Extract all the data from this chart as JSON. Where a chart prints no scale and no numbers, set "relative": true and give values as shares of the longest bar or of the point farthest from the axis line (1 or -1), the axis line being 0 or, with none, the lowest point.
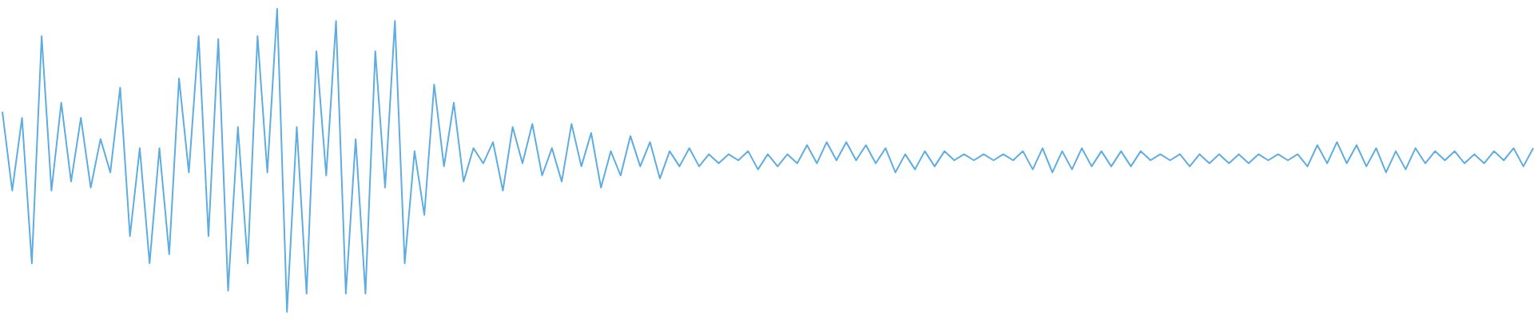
{
  "chart_data": {
    "type": "line",
    "relative": true,
    "categories": [
      null,
      null,
      null,
      null,
      null,
      null,
      null,
      null,
      null,
      null,
      null,
      null,
      null,
      null,
      null,
      null,
      null,
      null,
      null,
      null,
      null,
      null,
      null,
      null,
      null,
      null,
      null,
      null,
      null,
      null,
      null,
      null,
      null,
      null,
      null,
      null,
      null,
      null,
      null,
      null,
      null,
      null,
      null,
      null,
      null,
      null,
      null,
      null,
      null,
      null,
      null,
      null,
      null,
      null,
      null,
      null,
      null,
      null,
      null,
      null,
      null,
      null,
      null,
      null,
      null,
      null,
      null,
      null,
      null,
      null,
      null,
      null,
      null,
      null,
      null,
      null,
      null,
      null,
      null,
      null,
      null,
      null,
      null,
      null,
      null,
      null,
      null,
      null,
      null,
      null,
      null,
      null,
      null,
      null,
      null,
      null,
      null,
      null,
      null,
      null,
      null,
      null,
      null,
      null,
      null,
      null,
      null,
      null,
      null,
      null,
      null,
      null,
      null,
      null,
      null,
      null,
      null,
      null,
      null,
      null,
      null,
      null,
      null,
      null,
      null,
      null,
      null,
      null,
      null,
      null,
      null,
      null,
      null,
      null,
      null,
      null,
      null,
      null,
      null,
      null,
      null,
      null,
      null,
      null,
      null,
      null,
      null,
      null,
      null,
      null,
      null,
      null,
      null,
      null,
      null,
      null,
      null
    ],
    "series": [
      {
        "color": "#5dade2",
        "values": [
          0.66,
          0.4,
          0.64,
          0.16,
          0.91,
          0.4,
          0.69,
          0.43,
          0.64,
          0.41,
          0.57,
          0.46,
          0.74,
          0.25,
          0.54,
          0.16,
          0.54,
          0.19,
          0.77,
          0.46,
          0.91,
          0.25,
          0.9,
          0.07,
          0.61,
          0.16,
          0.91,
          0.46,
          1,
          0,
          0.61,
          0.06,
          0.86,
          0.45,
          0.96,
          0.06,
          0.57,
          0.06,
          0.86,
          0.41,
          0.96,
          0.16,
          0.53,
          0.32,
          0.75,
          0.48,
          0.69,
          0.43,
          0.54,
          0.49,
          0.56,
          0.4,
          0.61,
          0.49,
          0.62,
          0.45,
          0.54,
          0.43,
          0.62,
          0.48,
          0.59,
          0.41,
          0.53,
          0.45,
          0.58,
          0.48,
          0.56,
          0.44,
          0.53,
          0.48,
          0.54,
          0.48,
          0.52,
          0.49,
          0.52,
          0.5,
          0.53,
          0.47,
          0.52,
          0.48,
          0.52,
          0.49,
          0.55,
          0.49,
          0.56,
          0.5,
          0.56,
          0.5,
          0.55,
          0.49,
          0.54,
          0.46,
          0.52,
          0.47,
          0.53,
          0.48,
          0.53,
          0.5,
          0.52,
          0.5,
          0.52,
          0.5,
          0.52,
          0.5,
          0.53,
          0.47,
          0.54,
          0.46,
          0.53,
          0.47,
          0.54,
          0.48,
          0.53,
          0.48,
          0.53,
          0.48,
          0.53,
          0.5,
          0.52,
          0.5,
          0.52,
          0.48,
          0.52,
          0.49,
          0.52,
          0.49,
          0.52,
          0.49,
          0.52,
          0.5,
          0.52,
          0.5,
          0.52,
          0.48,
          0.55,
          0.49,
          0.56,
          0.49,
          0.55,
          0.48,
          0.54,
          0.46,
          0.53,
          0.47,
          0.54,
          0.49,
          0.53,
          0.5,
          0.53,
          0.49,
          0.52,
          0.49,
          0.53,
          0.5,
          0.54,
          0.48,
          0.54
        ]
      }
    ]
  }
}
